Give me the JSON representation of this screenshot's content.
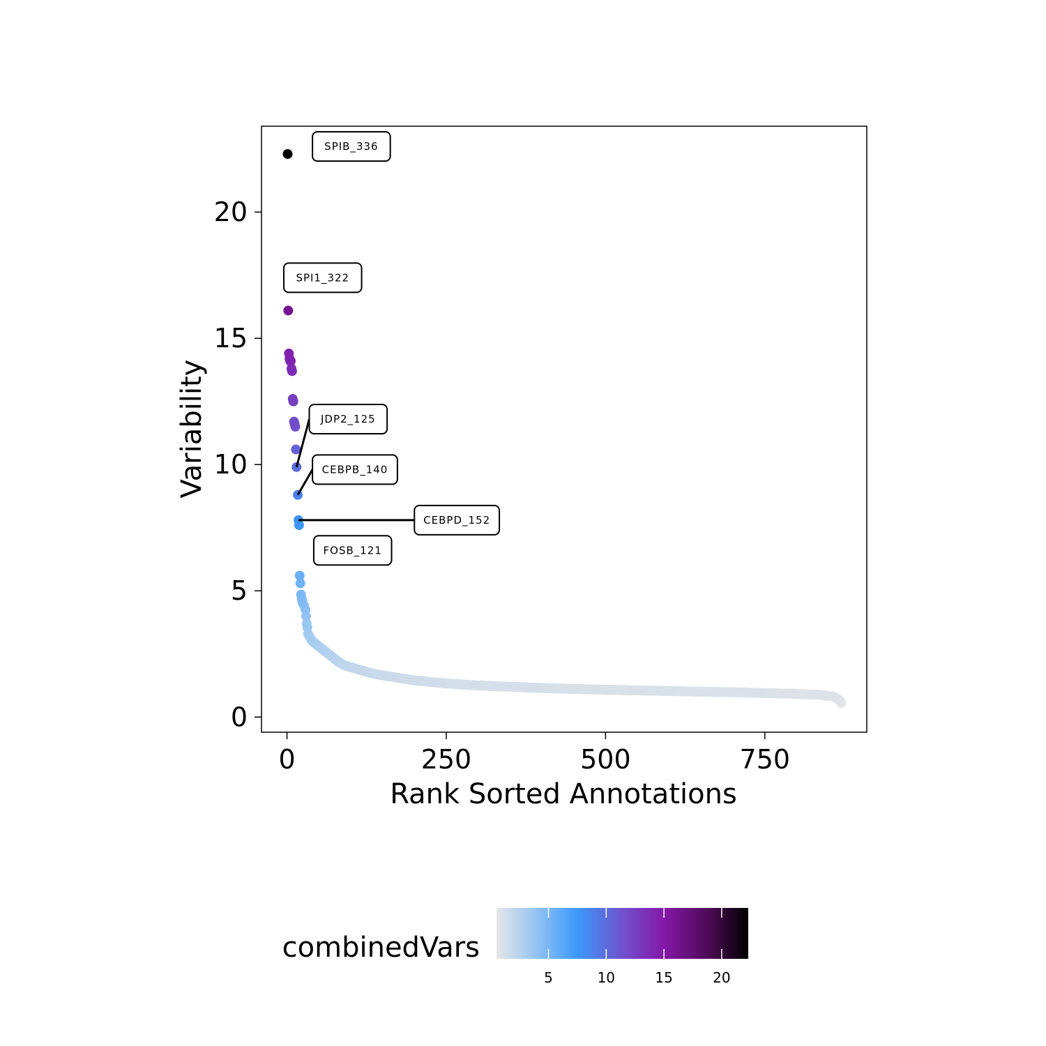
{
  "chart_data": {
    "type": "scatter",
    "xlabel": "Rank Sorted Annotations",
    "ylabel": "Variability",
    "xlim": [
      -40,
      910
    ],
    "ylim": [
      -0.6,
      23.4
    ],
    "x_ticks": [
      0,
      250,
      500,
      750
    ],
    "y_ticks": [
      0,
      5,
      10,
      15,
      20
    ],
    "grid": false,
    "n_points": 870,
    "top_points": [
      {
        "x": 1,
        "y": 22.3
      },
      {
        "x": 2,
        "y": 16.1
      },
      {
        "x": 3,
        "y": 14.4
      },
      {
        "x": 4,
        "y": 14.2
      },
      {
        "x": 5,
        "y": 14.1
      },
      {
        "x": 6,
        "y": 14.1
      },
      {
        "x": 7,
        "y": 13.8
      },
      {
        "x": 8,
        "y": 13.7
      },
      {
        "x": 9,
        "y": 12.6
      },
      {
        "x": 10,
        "y": 12.5
      },
      {
        "x": 11,
        "y": 11.7
      },
      {
        "x": 12,
        "y": 11.6
      },
      {
        "x": 13,
        "y": 11.5
      },
      {
        "x": 14,
        "y": 10.6
      },
      {
        "x": 15,
        "y": 9.9
      },
      {
        "x": 17,
        "y": 8.8
      },
      {
        "x": 18,
        "y": 7.8
      },
      {
        "x": 19,
        "y": 7.6
      },
      {
        "x": 20,
        "y": 5.6
      },
      {
        "x": 21,
        "y": 5.3
      },
      {
        "x": 22,
        "y": 4.85
      },
      {
        "x": 23,
        "y": 4.7
      },
      {
        "x": 24,
        "y": 4.6
      },
      {
        "x": 25,
        "y": 4.5
      },
      {
        "x": 27,
        "y": 4.4
      },
      {
        "x": 29,
        "y": 4.25
      },
      {
        "x": 30,
        "y": 4.0
      },
      {
        "x": 31,
        "y": 3.7
      },
      {
        "x": 32,
        "y": 3.55
      },
      {
        "x": 33,
        "y": 3.3
      },
      {
        "x": 35,
        "y": 3.2
      },
      {
        "x": 37,
        "y": 3.1
      },
      {
        "x": 40,
        "y": 3.0
      }
    ],
    "tail_curve": [
      [
        40,
        3.0
      ],
      [
        50,
        2.8
      ],
      [
        60,
        2.6
      ],
      [
        70,
        2.4
      ],
      [
        80,
        2.2
      ],
      [
        90,
        2.05
      ],
      [
        110,
        1.9
      ],
      [
        130,
        1.75
      ],
      [
        150,
        1.65
      ],
      [
        200,
        1.45
      ],
      [
        250,
        1.33
      ],
      [
        300,
        1.25
      ],
      [
        400,
        1.15
      ],
      [
        500,
        1.08
      ],
      [
        600,
        1.03
      ],
      [
        700,
        0.98
      ],
      [
        800,
        0.92
      ],
      [
        840,
        0.87
      ],
      [
        855,
        0.82
      ],
      [
        862,
        0.75
      ],
      [
        868,
        0.65
      ],
      [
        870,
        0.55
      ]
    ],
    "color_scale": {
      "name": "combinedVars",
      "min": 0.5,
      "max": 22.3,
      "ticks": [
        5,
        10,
        15,
        20
      ],
      "stops": [
        {
          "value": 0.5,
          "color": "#e6e6e6"
        },
        {
          "value": 3.5,
          "color": "#9fc8f2"
        },
        {
          "value": 7.5,
          "color": "#3b99fb"
        },
        {
          "value": 11.5,
          "color": "#7050cc"
        },
        {
          "value": 15.0,
          "color": "#8418a8"
        },
        {
          "value": 19.0,
          "color": "#4a0a52"
        },
        {
          "value": 22.3,
          "color": "#000000"
        }
      ]
    },
    "annotations": [
      {
        "label": "SPIB_336",
        "x": 1,
        "y": 22.3,
        "box_x": 40,
        "box_y": 22.6,
        "leader": false
      },
      {
        "label": "SPI1_322",
        "x": 2,
        "y": 16.1,
        "box_x": -5,
        "box_y": 17.4,
        "leader": false
      },
      {
        "label": "JDP2_125",
        "x": 15,
        "y": 9.9,
        "box_x": 35,
        "box_y": 11.8,
        "leader": true
      },
      {
        "label": "CEBPB_140",
        "x": 17,
        "y": 8.8,
        "box_x": 40,
        "box_y": 9.8,
        "leader": true
      },
      {
        "label": "CEBPD_152",
        "x": 18,
        "y": 7.8,
        "box_x": 200,
        "box_y": 7.8,
        "leader": true
      },
      {
        "label": "FOSB_121",
        "x": 19,
        "y": 7.6,
        "box_x": 42,
        "box_y": 6.6,
        "leader": false
      }
    ]
  }
}
